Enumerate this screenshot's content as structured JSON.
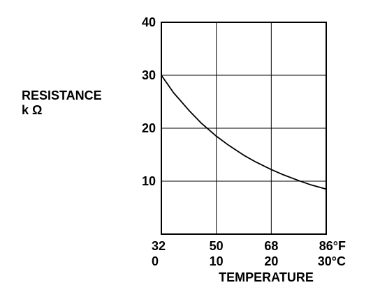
{
  "chart_data": {
    "type": "line",
    "title": "",
    "ylabel": "RESISTANCE",
    "ylabel_unit": "k Ω",
    "xlabel": "TEMPERATURE",
    "x_unit_primary": "°F",
    "x_unit_secondary": "°C",
    "xlim": [
      32,
      86
    ],
    "ylim": [
      0,
      40
    ],
    "x_ticks_primary": [
      {
        "value": 32,
        "label": "32"
      },
      {
        "value": 50,
        "label": "50"
      },
      {
        "value": 68,
        "label": "68"
      },
      {
        "value": 86,
        "label": "86°F"
      }
    ],
    "x_ticks_secondary": [
      {
        "value": 32,
        "label": "0"
      },
      {
        "value": 50,
        "label": "10"
      },
      {
        "value": 68,
        "label": "20"
      },
      {
        "value": 86,
        "label": "30°C"
      }
    ],
    "y_ticks": [
      {
        "value": 10,
        "label": "10"
      },
      {
        "value": 20,
        "label": "20"
      },
      {
        "value": 30,
        "label": "30"
      },
      {
        "value": 40,
        "label": "40"
      }
    ],
    "grid": true,
    "series": [
      {
        "x": [
          32,
          36,
          41,
          45,
          50,
          54,
          59,
          63,
          68,
          72,
          77,
          81,
          86
        ],
        "y": [
          30.0,
          26.7,
          23.4,
          21.0,
          18.5,
          16.8,
          14.9,
          13.6,
          12.2,
          11.2,
          10.1,
          9.3,
          8.5
        ]
      }
    ]
  }
}
